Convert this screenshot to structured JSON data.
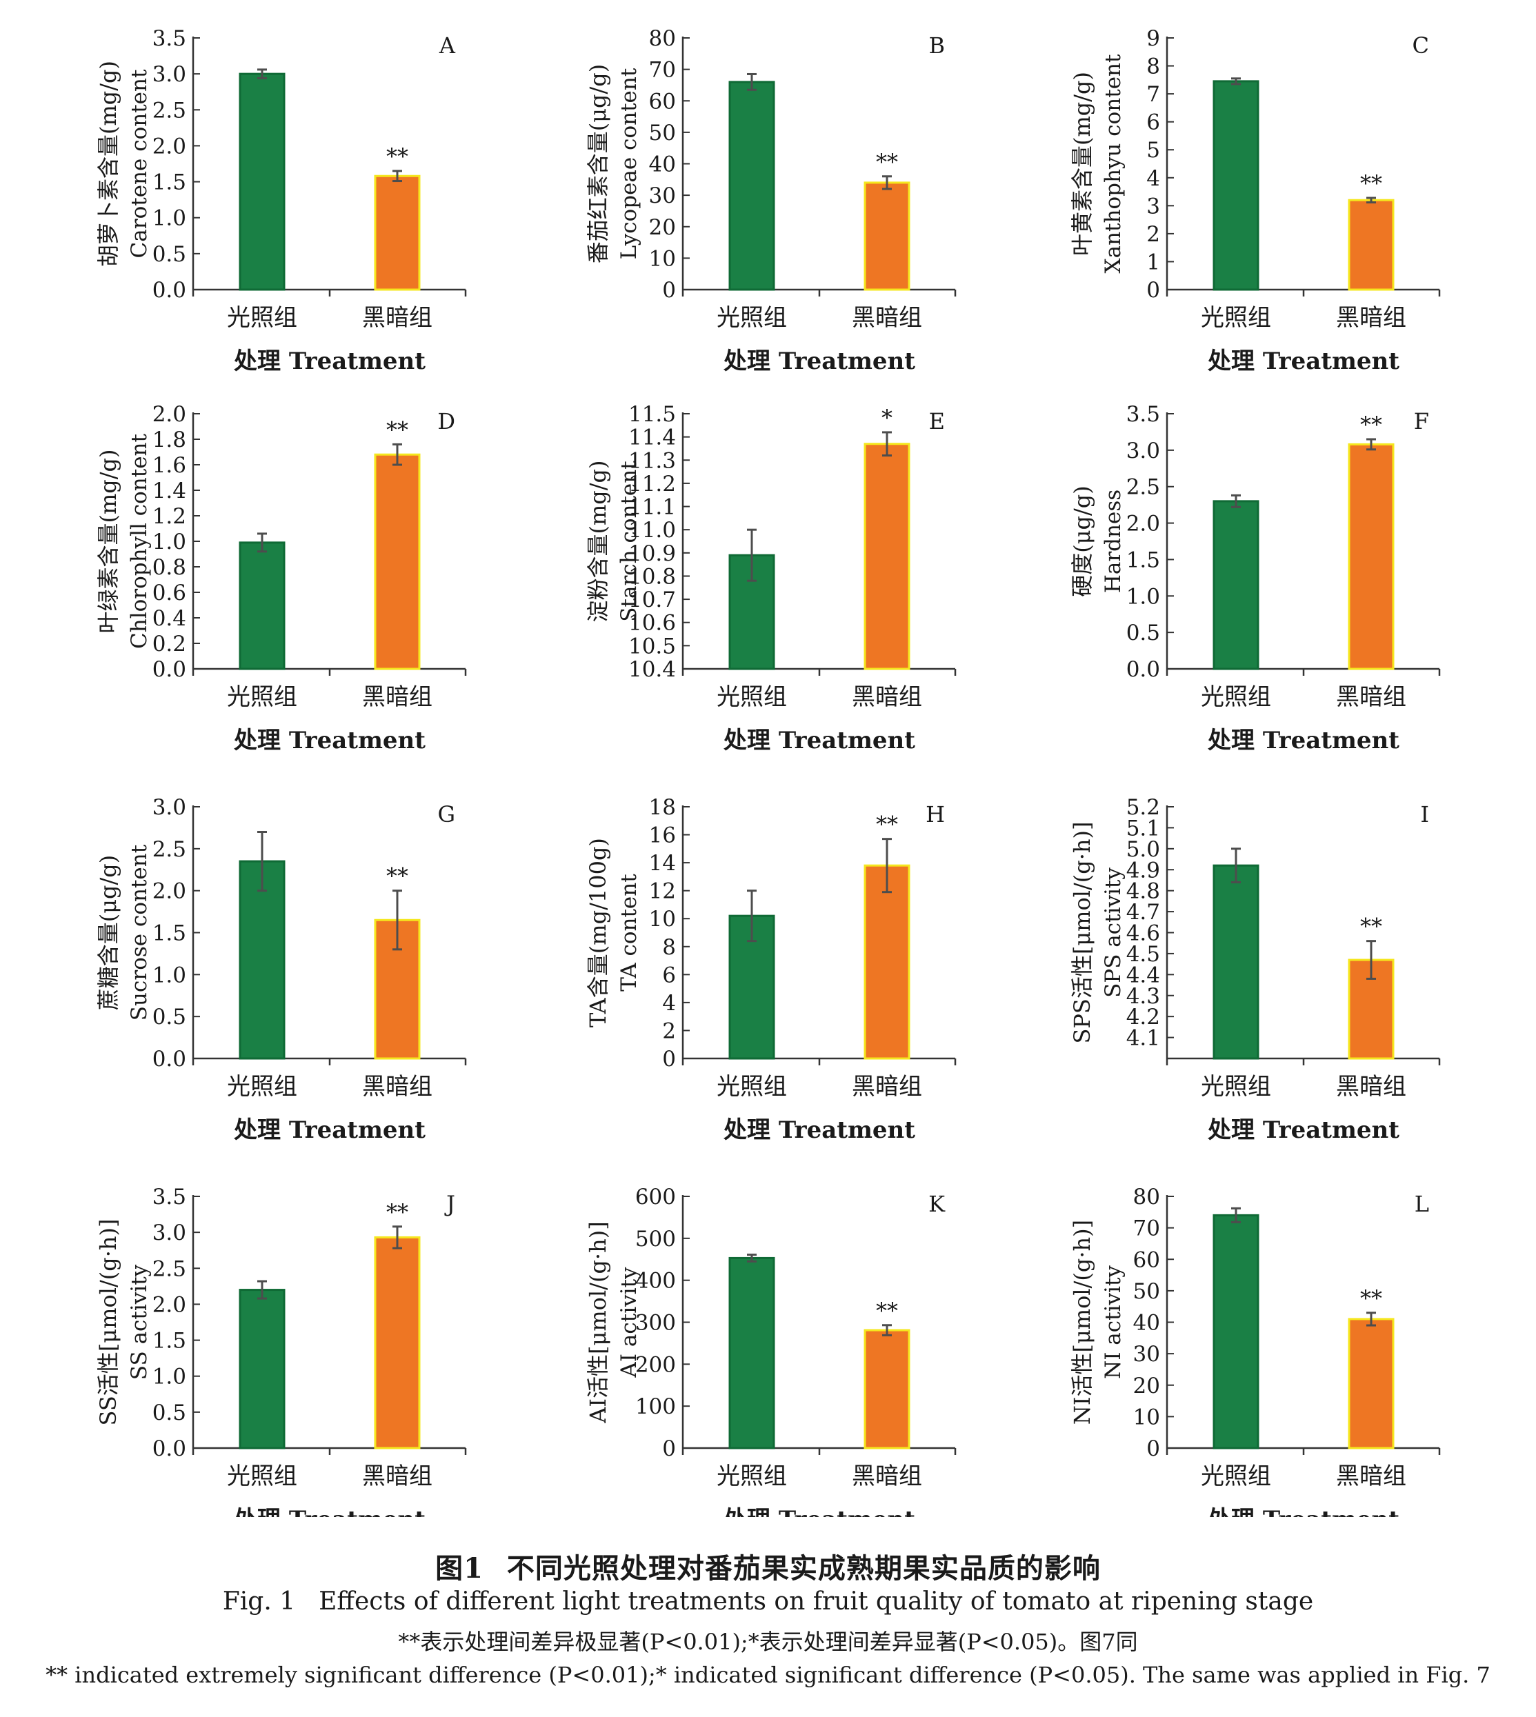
{
  "chart_data": [
    {
      "panel": "A",
      "type": "bar",
      "categories": [
        "光照组",
        "黑暗组"
      ],
      "values": [
        3.0,
        1.58
      ],
      "errors": [
        0.06,
        0.07
      ],
      "significance": [
        "",
        "**"
      ],
      "ylim": [
        0,
        3.5
      ],
      "yticks": [
        "0.0",
        "0.5",
        "1.0",
        "1.5",
        "2.0",
        "2.5",
        "3.0",
        "3.5"
      ],
      "ylabel_zh": "胡萝卜素含量(mg/g)",
      "ylabel_en": "Carotene content",
      "xlabel": "处理 Treatment"
    },
    {
      "panel": "B",
      "type": "bar",
      "categories": [
        "光照组",
        "黑暗组"
      ],
      "values": [
        66,
        34
      ],
      "errors": [
        2.5,
        2
      ],
      "significance": [
        "",
        "**"
      ],
      "ylim": [
        0,
        80
      ],
      "yticks": [
        "0",
        "10",
        "20",
        "30",
        "40",
        "50",
        "60",
        "70",
        "80"
      ],
      "ylabel_zh": "番茄红素含量(μg/g)",
      "ylabel_en": "Lycopeae content",
      "xlabel": "处理 Treatment"
    },
    {
      "panel": "C",
      "type": "bar",
      "categories": [
        "光照组",
        "黑暗组"
      ],
      "values": [
        7.45,
        3.2
      ],
      "errors": [
        0.1,
        0.08
      ],
      "significance": [
        "",
        "**"
      ],
      "ylim": [
        0,
        9
      ],
      "yticks": [
        "0",
        "1",
        "2",
        "3",
        "4",
        "5",
        "6",
        "7",
        "8",
        "9"
      ],
      "ylabel_zh": "叶黄素含量(mg/g)",
      "ylabel_en": "Xanthophyu content",
      "xlabel": "处理 Treatment"
    },
    {
      "panel": "D",
      "type": "bar",
      "categories": [
        "光照组",
        "黑暗组"
      ],
      "values": [
        0.99,
        1.68
      ],
      "errors": [
        0.07,
        0.08
      ],
      "significance": [
        "",
        "**"
      ],
      "ylim": [
        0,
        2.0
      ],
      "yticks": [
        "0.0",
        "0.2",
        "0.4",
        "0.6",
        "0.8",
        "1.0",
        "1.2",
        "1.4",
        "1.6",
        "1.8",
        "2.0"
      ],
      "ylabel_zh": "叶绿素含量(mg/g)",
      "ylabel_en": "Chlorophyll content",
      "xlabel": "处理 Treatment"
    },
    {
      "panel": "E",
      "type": "bar",
      "categories": [
        "光照组",
        "黑暗组"
      ],
      "values": [
        10.89,
        11.37
      ],
      "errors": [
        0.11,
        0.05
      ],
      "significance": [
        "",
        "*"
      ],
      "ylim": [
        10.4,
        11.5
      ],
      "yticks": [
        "10.4",
        "10.5",
        "10.6",
        "10.7",
        "10.8",
        "10.9",
        "11.0",
        "11.1",
        "11.2",
        "11.3",
        "11.4",
        "11.5"
      ],
      "ylabel_zh": "淀粉含量(mg/g)",
      "ylabel_en": "Starch content",
      "xlabel": "处理 Treatment"
    },
    {
      "panel": "F",
      "type": "bar",
      "categories": [
        "光照组",
        "黑暗组"
      ],
      "values": [
        2.3,
        3.08
      ],
      "errors": [
        0.08,
        0.07
      ],
      "significance": [
        "",
        "**"
      ],
      "ylim": [
        0,
        3.5
      ],
      "yticks": [
        "0.0",
        "0.5",
        "1.0",
        "1.5",
        "2.0",
        "2.5",
        "3.0",
        "3.5"
      ],
      "ylabel_zh": "硬度(μg/g)",
      "ylabel_en": "Hardness",
      "xlabel": "处理 Treatment"
    },
    {
      "panel": "G",
      "type": "bar",
      "categories": [
        "光照组",
        "黑暗组"
      ],
      "values": [
        2.35,
        1.65
      ],
      "errors": [
        0.35,
        0.35
      ],
      "significance": [
        "",
        "**"
      ],
      "ylim": [
        0,
        3.0
      ],
      "yticks": [
        "0.0",
        "0.5",
        "1.0",
        "1.5",
        "2.0",
        "2.5",
        "3.0"
      ],
      "ylabel_zh": "蔗糖含量(μg/g)",
      "ylabel_en": "Sucrose content",
      "xlabel": "处理 Treatment"
    },
    {
      "panel": "H",
      "type": "bar",
      "categories": [
        "光照组",
        "黑暗组"
      ],
      "values": [
        10.2,
        13.8
      ],
      "errors": [
        1.8,
        1.9
      ],
      "significance": [
        "",
        "**"
      ],
      "ylim": [
        0,
        18
      ],
      "yticks": [
        "0",
        "2",
        "4",
        "6",
        "8",
        "10",
        "12",
        "14",
        "16",
        "18"
      ],
      "ylabel_zh": "TA含量(mg/100g)",
      "ylabel_en": "TA content",
      "xlabel": "处理 Treatment"
    },
    {
      "panel": "I",
      "type": "bar",
      "categories": [
        "光照组",
        "黑暗组"
      ],
      "values": [
        4.92,
        4.47
      ],
      "errors": [
        0.08,
        0.09
      ],
      "significance": [
        "",
        "**"
      ],
      "ylim": [
        4.0,
        5.2
      ],
      "yticks": [
        "4.1",
        "4.2",
        "4.3",
        "4.4",
        "4.5",
        "4.6",
        "4.7",
        "4.8",
        "4.9",
        "5.0",
        "5.1",
        "5.2"
      ],
      "ylabel_zh": "SPS活性[μmol/(g·h)]",
      "ylabel_en": "SPS activity",
      "xlabel": "处理 Treatment"
    },
    {
      "panel": "J",
      "type": "bar",
      "categories": [
        "光照组",
        "黑暗组"
      ],
      "values": [
        2.2,
        2.93
      ],
      "errors": [
        0.12,
        0.15
      ],
      "significance": [
        "",
        "**"
      ],
      "ylim": [
        0,
        3.5
      ],
      "yticks": [
        "0.0",
        "0.5",
        "1.0",
        "1.5",
        "2.0",
        "2.5",
        "3.0",
        "3.5"
      ],
      "ylabel_zh": "SS活性[μmol/(g·h)]",
      "ylabel_en": "SS activity",
      "xlabel": "处理 Treatment"
    },
    {
      "panel": "K",
      "type": "bar",
      "categories": [
        "光照组",
        "黑暗组"
      ],
      "values": [
        453,
        281
      ],
      "errors": [
        8,
        12
      ],
      "significance": [
        "",
        "**"
      ],
      "ylim": [
        0,
        600
      ],
      "yticks": [
        "0",
        "100",
        "200",
        "300",
        "400",
        "500",
        "600"
      ],
      "ylabel_zh": "AI活性[μmol/(g·h)]",
      "ylabel_en": "AI activity",
      "xlabel": "处理 Treatment"
    },
    {
      "panel": "L",
      "type": "bar",
      "categories": [
        "光照组",
        "黑暗组"
      ],
      "values": [
        74,
        41
      ],
      "errors": [
        2.2,
        2
      ],
      "significance": [
        "",
        "**"
      ],
      "ylim": [
        0,
        80
      ],
      "yticks": [
        "0",
        "10",
        "20",
        "30",
        "40",
        "50",
        "60",
        "70",
        "80"
      ],
      "ylabel_zh": "NI活性[μmol/(g·h)]",
      "ylabel_en": "NI activity",
      "xlabel": "处理 Treatment"
    }
  ],
  "colors": {
    "light_group": "#1a8045",
    "dark_group": "#ee7623",
    "dark_group_edge": "#f5e71e",
    "axis": "#333333"
  },
  "caption": {
    "title_zh_label": "图1",
    "title_zh": "不同光照处理对番茄果实成熟期果实品质的影响",
    "title_en_label": "Fig. 1",
    "title_en": "Effects of different light treatments on fruit quality of tomato at ripening stage",
    "note_zh": "**表示处理间差异极显著(P<0.01);*表示处理间差异显著(P<0.05)。图7同",
    "note_en": "** indicated extremely significant difference (P<0.01);* indicated significant difference (P<0.05). The same was applied in Fig. 7"
  }
}
